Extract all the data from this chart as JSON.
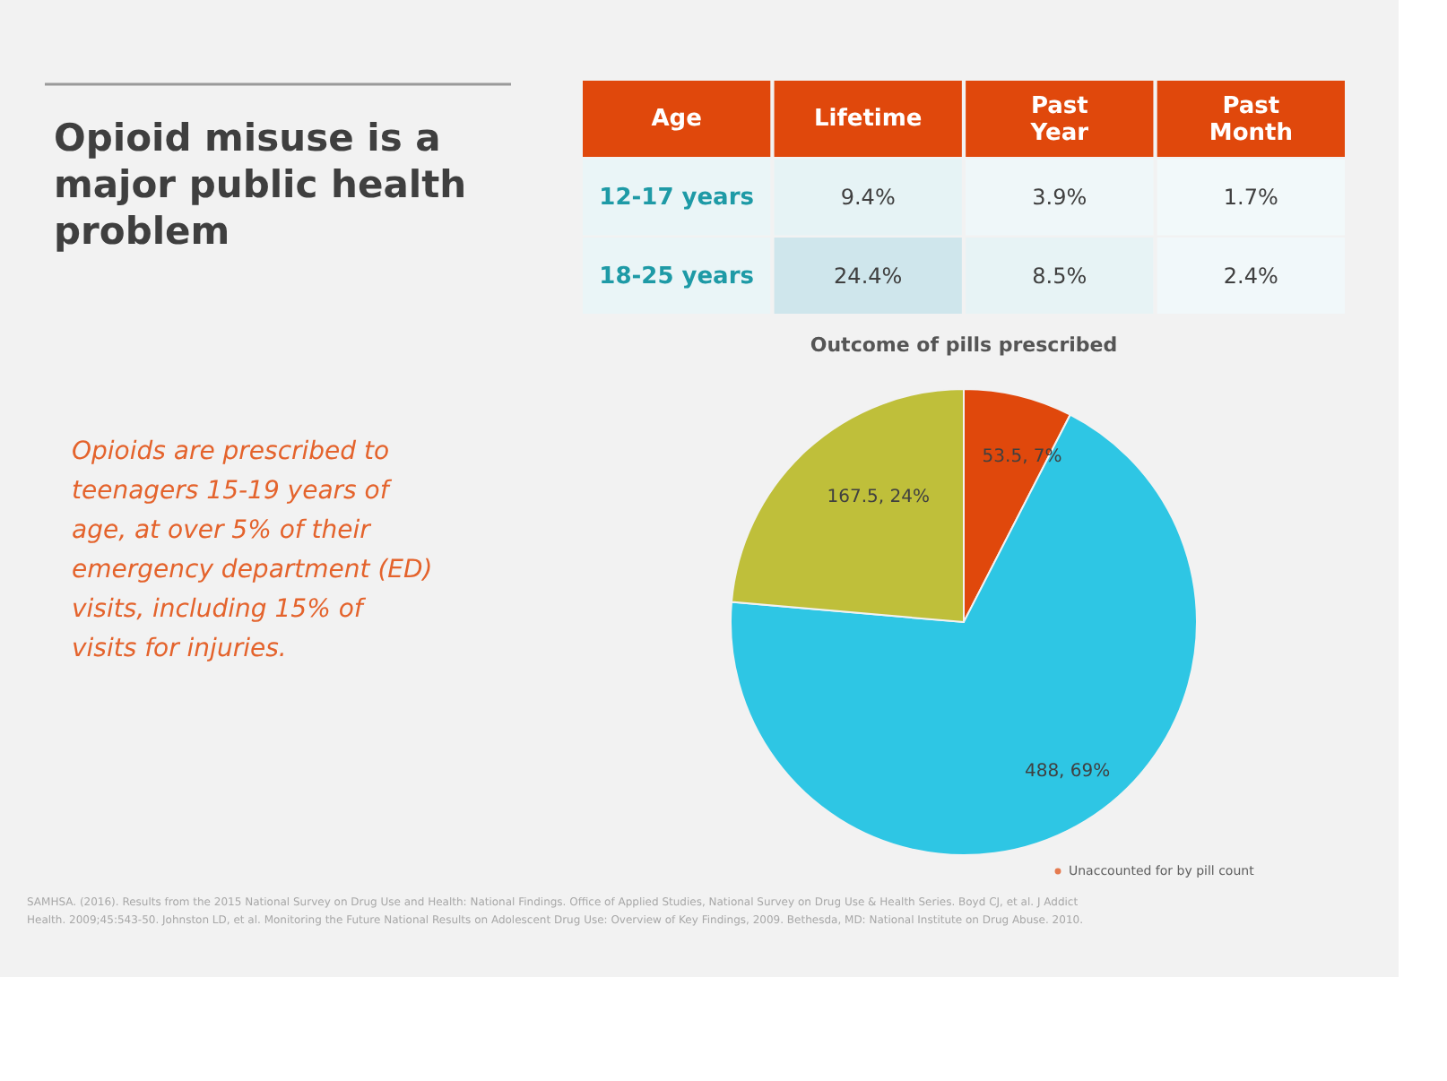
{
  "chart_data": [
    {
      "type": "other",
      "title": "Opioid misuse is a major public health problem",
      "annotations": [
        "Opioids are prescribed to teenagers 15-19 years of age, at over 5% of their emergency department (ED) visits, including 15% of visits for injuries.",
        "SAMHSA. (2016). Results from the 2015 National Survey on Drug Use and Health: National Findings. Office of Applied Studies, National Survey on Drug Use & Health Series. Boyd CJ, et al. J Addict Health. 2009;45:543-50. Johnston LD, et al. Monitoring the Future National Results on Adolescent Drug Use: Overview of Key Findings, 2009. Bethesda, MD: National Institute on Drug Abuse. 2010."
      ]
    },
    {
      "type": "heatmap",
      "ylabel": "Age",
      "categories": [
        "Lifetime",
        "Past Year",
        "Past Month"
      ],
      "y_categories": [
        "12-17 years",
        "18-25 years"
      ],
      "cells": [
        [
          9.4,
          3.9,
          1.7
        ],
        [
          24.4,
          8.5,
          2.4
        ]
      ],
      "cell_labels": [
        [
          "9.4%",
          "3.9%",
          "1.7%"
        ],
        [
          "24.4%",
          "8.5%",
          "2.4%"
        ]
      ]
    },
    {
      "type": "pie",
      "title": "Outcome of pills prescribed",
      "categories": [
        "Unaccounted for by pill count",
        null,
        null
      ],
      "values": [
        53.5,
        488,
        167.5
      ],
      "colors": [
        "#e0480c",
        "#2ec6e4",
        "#bfbf3a"
      ],
      "value_labels": [
        "53.5, 7%",
        "488, 69%",
        "167.5, 24%"
      ],
      "legend": "bottom right"
    }
  ]
}
